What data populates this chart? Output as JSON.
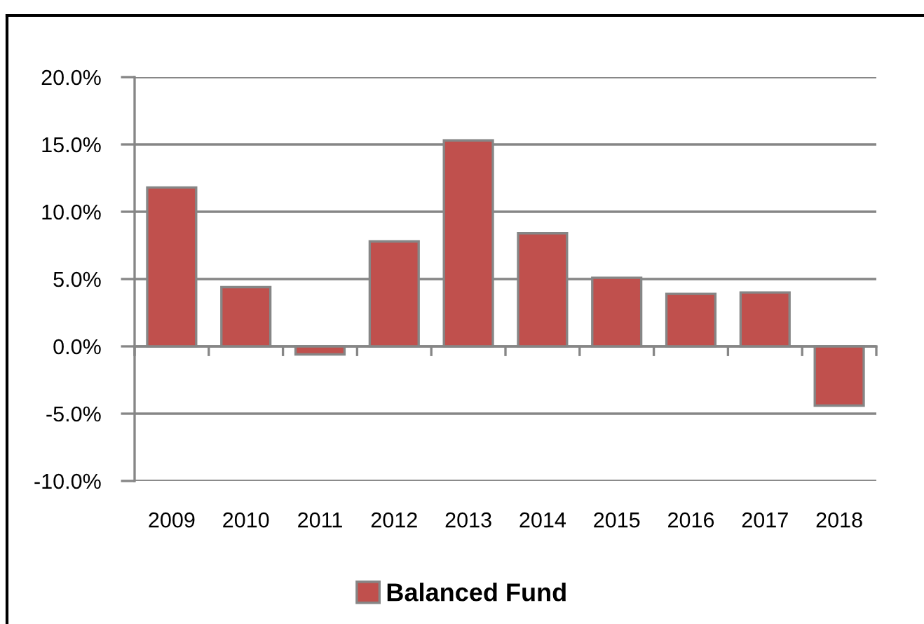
{
  "chart_data": {
    "type": "bar",
    "categories": [
      "2009",
      "2010",
      "2011",
      "2012",
      "2013",
      "2014",
      "2015",
      "2016",
      "2017",
      "2018"
    ],
    "series": [
      {
        "name": "Balanced Fund",
        "color": "#c0504d",
        "values": [
          11.8,
          4.4,
          -0.6,
          7.8,
          15.3,
          8.4,
          5.1,
          3.9,
          4.0,
          -4.4
        ]
      }
    ],
    "ylim": [
      -10,
      20
    ],
    "yticks": [
      {
        "value": -10,
        "label": "-10.0%"
      },
      {
        "value": -5,
        "label": "-5.0%"
      },
      {
        "value": 0,
        "label": "0.0%"
      },
      {
        "value": 5,
        "label": "5.0%"
      },
      {
        "value": 10,
        "label": "10.0%"
      },
      {
        "value": 15,
        "label": "15.0%"
      },
      {
        "value": 20,
        "label": "20.0%"
      }
    ],
    "grid": "y",
    "legend": "bottom"
  }
}
